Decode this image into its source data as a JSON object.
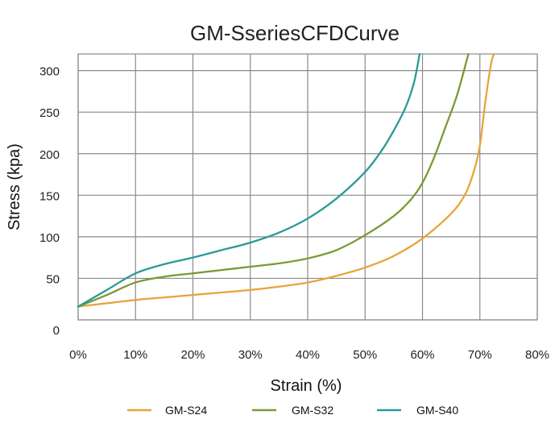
{
  "chart_data": {
    "type": "line",
    "title": "GM-SseriesCFDCurve",
    "xlabel": "Strain (%)",
    "ylabel": "Stress (kpa)",
    "xlim": [
      0,
      80
    ],
    "ylim": [
      0,
      320
    ],
    "x_ticks": [
      0,
      10,
      20,
      30,
      40,
      50,
      60,
      70,
      80
    ],
    "x_tick_labels": [
      "0%",
      "10%",
      "20%",
      "30%",
      "40%",
      "50%",
      "60%",
      "70%",
      "80%"
    ],
    "y_ticks": [
      0,
      50,
      100,
      150,
      200,
      250,
      300
    ],
    "y_tick_labels": [
      "0",
      "50",
      "100",
      "150",
      "200",
      "250",
      "300"
    ],
    "grid": true,
    "legend_position": "bottom",
    "series": [
      {
        "name": "GM-S24",
        "color": "#E8A33A",
        "points": [
          [
            0,
            16
          ],
          [
            5,
            20
          ],
          [
            10,
            24
          ],
          [
            15,
            27
          ],
          [
            20,
            30
          ],
          [
            25,
            33
          ],
          [
            30,
            36
          ],
          [
            35,
            40
          ],
          [
            40,
            45
          ],
          [
            45,
            53
          ],
          [
            50,
            63
          ],
          [
            55,
            77
          ],
          [
            60,
            98
          ],
          [
            65,
            128
          ],
          [
            67.5,
            152
          ],
          [
            69,
            180
          ],
          [
            70,
            210
          ],
          [
            71,
            265
          ],
          [
            72,
            310
          ],
          [
            72.5,
            320
          ]
        ]
      },
      {
        "name": "GM-S32",
        "color": "#7A9A34",
        "points": [
          [
            0,
            16
          ],
          [
            5,
            30
          ],
          [
            10,
            45
          ],
          [
            15,
            52
          ],
          [
            20,
            56
          ],
          [
            25,
            60
          ],
          [
            30,
            64
          ],
          [
            35,
            68
          ],
          [
            40,
            74
          ],
          [
            45,
            84
          ],
          [
            50,
            102
          ],
          [
            55,
            125
          ],
          [
            58,
            145
          ],
          [
            60,
            165
          ],
          [
            62,
            195
          ],
          [
            64,
            232
          ],
          [
            66,
            270
          ],
          [
            68,
            320
          ]
        ]
      },
      {
        "name": "GM-S40",
        "color": "#2A9A96",
        "points": [
          [
            0,
            16
          ],
          [
            5,
            36
          ],
          [
            10,
            56
          ],
          [
            15,
            67
          ],
          [
            20,
            75
          ],
          [
            25,
            84
          ],
          [
            30,
            93
          ],
          [
            35,
            105
          ],
          [
            40,
            122
          ],
          [
            45,
            146
          ],
          [
            50,
            178
          ],
          [
            53,
            205
          ],
          [
            55,
            228
          ],
          [
            57,
            255
          ],
          [
            58.5,
            285
          ],
          [
            59.5,
            320
          ]
        ]
      }
    ]
  }
}
